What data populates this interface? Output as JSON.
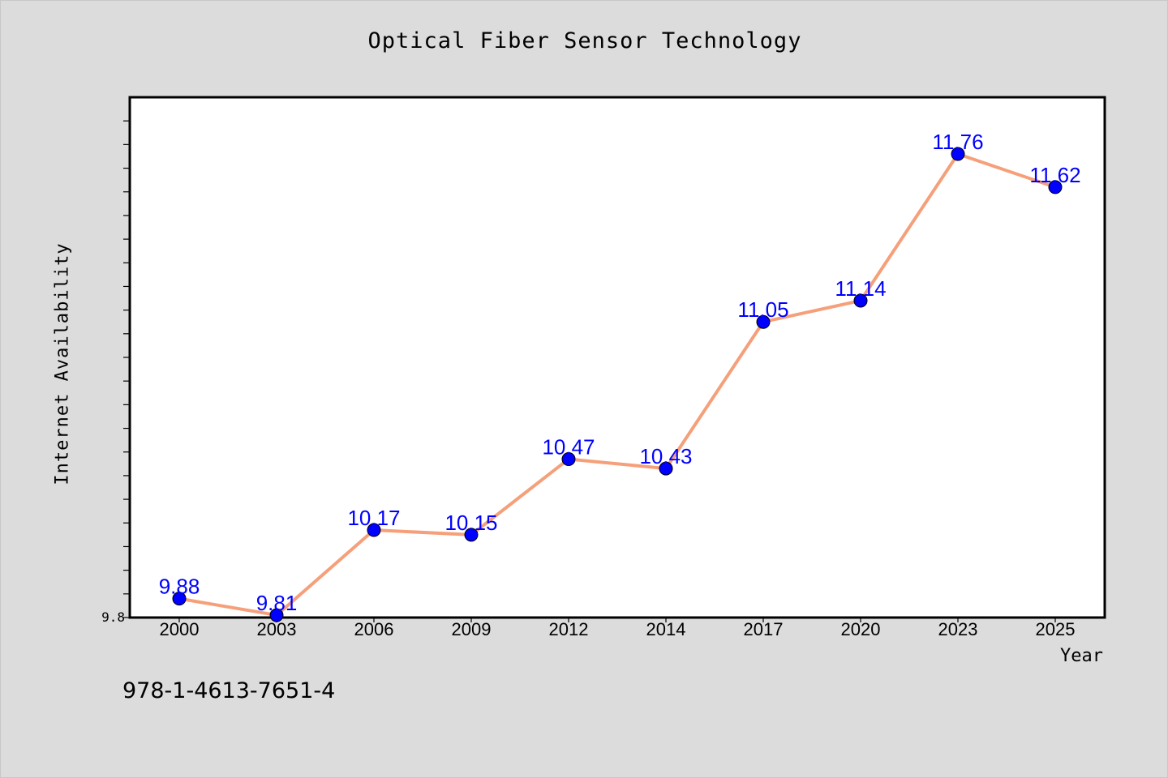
{
  "chart_data": {
    "type": "line",
    "title": "Optical Fiber Sensor Technology",
    "xlabel": "Year",
    "ylabel": "Internet Availability",
    "categories": [
      "2000",
      "2003",
      "2006",
      "2009",
      "2012",
      "2014",
      "2017",
      "2020",
      "2023",
      "2025"
    ],
    "series": [
      {
        "values": [
          9.88,
          9.81,
          10.17,
          10.15,
          10.47,
          10.43,
          11.05,
          11.14,
          11.76,
          11.62
        ]
      }
    ],
    "ylim": [
      9.8,
      12.0
    ],
    "y_tick_labels": [
      "9.8"
    ],
    "grid": false,
    "line_color": "#f5a07a",
    "marker_color": "#0000ff",
    "data_label_color": "#0000ff"
  },
  "footer": {
    "id_text": "978-1-4613-7651-4"
  }
}
